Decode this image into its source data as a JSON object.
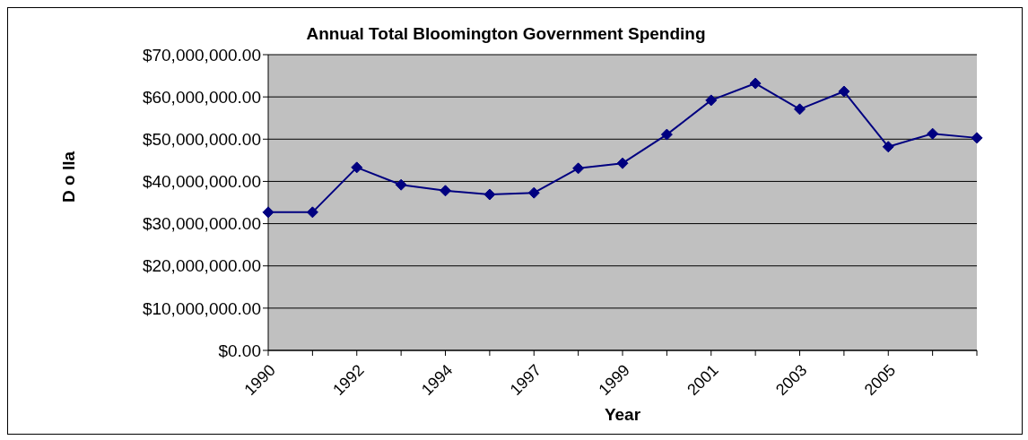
{
  "chart_data": {
    "type": "line",
    "title": "Annual Total Bloomington Government Spending",
    "xlabel": "Year",
    "ylabel": "D o lla",
    "categories": [
      "1990",
      null,
      "1992",
      null,
      "1994",
      null,
      "1997",
      null,
      "1999",
      null,
      "2001",
      null,
      "2003",
      null,
      "2005",
      null,
      null
    ],
    "series": [
      {
        "color": "#000080",
        "values": [
          32700000,
          32700000,
          43300000,
          39200000,
          37800000,
          36900000,
          37300000,
          43100000,
          44300000,
          51100000,
          59200000,
          63200000,
          57100000,
          61300000,
          48200000,
          51300000,
          50300000
        ]
      }
    ],
    "ylim": [
      0,
      70000000
    ],
    "yticks": [
      {
        "value": 0,
        "label": "$0.00"
      },
      {
        "value": 10000000,
        "label": "$10,000,000.00"
      },
      {
        "value": 20000000,
        "label": "$20,000,000.00"
      },
      {
        "value": 30000000,
        "label": "$30,000,000.00"
      },
      {
        "value": 40000000,
        "label": "$40,000,000.00"
      },
      {
        "value": 50000000,
        "label": "$50,000,000.00"
      },
      {
        "value": 60000000,
        "label": "$60,000,000.00"
      },
      {
        "value": 70000000,
        "label": "$70,000,000.00"
      }
    ],
    "grid": "y",
    "legend": false,
    "marker": "diamond",
    "line_style": "solid"
  }
}
